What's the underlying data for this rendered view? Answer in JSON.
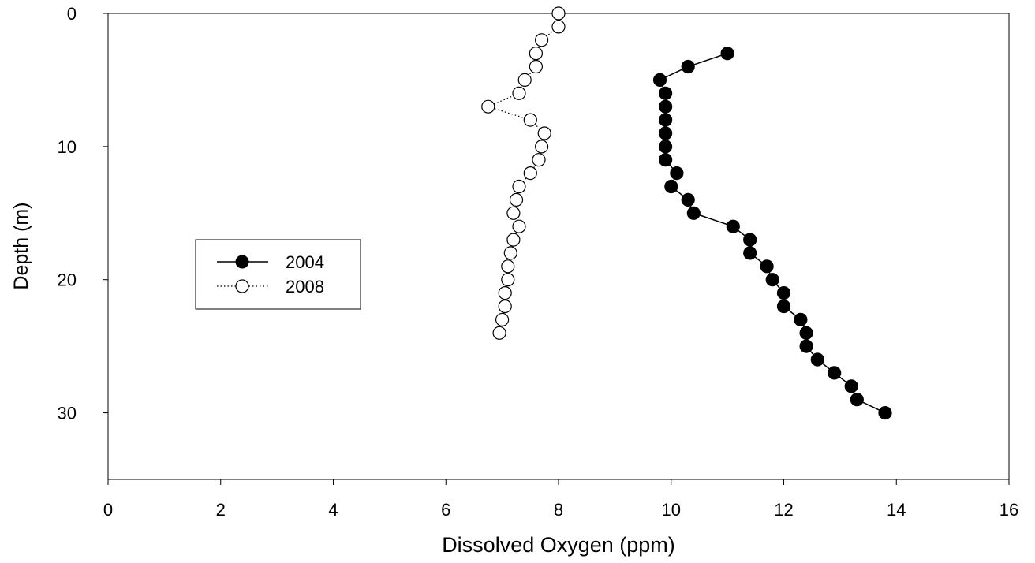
{
  "chart_data": {
    "type": "scatter",
    "title": "",
    "xlabel": "Dissolved Oxygen (ppm)",
    "ylabel": "Depth (m)",
    "xlim": [
      0,
      16
    ],
    "ylim": [
      35,
      0
    ],
    "y_inverted": true,
    "x_ticks": [
      0,
      2,
      4,
      6,
      8,
      10,
      12,
      14,
      16
    ],
    "y_ticks": [
      0,
      10,
      20,
      30
    ],
    "grid": false,
    "legend_position": "center-left",
    "series": [
      {
        "name": "2004",
        "marker": "filled-circle",
        "line": "solid",
        "color": "#000000",
        "x": [
          11.0,
          10.3,
          9.8,
          9.9,
          9.9,
          9.9,
          9.9,
          9.9,
          9.9,
          10.1,
          10.0,
          10.3,
          10.4,
          11.1,
          11.4,
          11.4,
          11.7,
          11.8,
          12.0,
          12.0,
          12.3,
          12.4,
          12.4,
          12.6,
          12.9,
          13.2,
          13.3,
          13.8
        ],
        "y": [
          3,
          4,
          5,
          6,
          7,
          8,
          9,
          10,
          11,
          12,
          13,
          14,
          15,
          16,
          17,
          18,
          19,
          20,
          21,
          22,
          23,
          24,
          25,
          26,
          27,
          28,
          29,
          30
        ]
      },
      {
        "name": "2008",
        "marker": "open-circle",
        "line": "dotted",
        "color": "#000000",
        "x": [
          8.0,
          8.0,
          7.7,
          7.6,
          7.6,
          7.4,
          7.3,
          6.75,
          7.5,
          7.75,
          7.7,
          7.65,
          7.5,
          7.3,
          7.25,
          7.2,
          7.3,
          7.2,
          7.15,
          7.1,
          7.1,
          7.05,
          7.05,
          7.0,
          6.95
        ],
        "y": [
          0,
          1,
          2,
          3,
          4,
          5,
          6,
          7,
          8,
          9,
          10,
          11,
          12,
          13,
          14,
          15,
          16,
          17,
          18,
          19,
          20,
          21,
          22,
          23,
          24
        ]
      }
    ]
  }
}
